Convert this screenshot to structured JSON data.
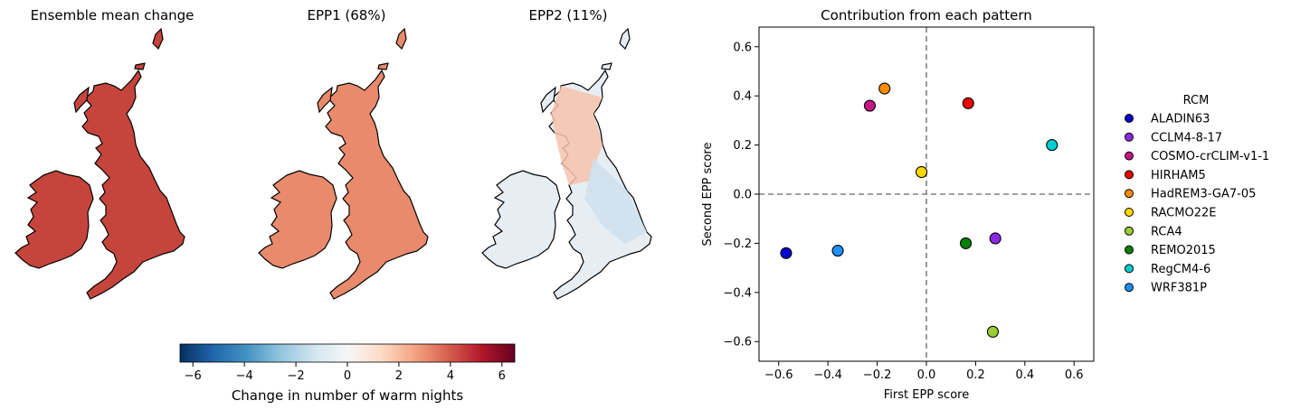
{
  "maps": {
    "panels": [
      {
        "title": "Ensemble mean change"
      },
      {
        "title": "EPP1 (68%)"
      },
      {
        "title": "EPP2 (11%)"
      }
    ],
    "colorbar": {
      "label": "Change in number of warm nights",
      "range": [
        -6.5,
        6.5
      ],
      "ticks": [
        -6,
        -4,
        -2,
        0,
        2,
        4,
        6
      ],
      "tick_labels": [
        "−6",
        "−4",
        "−2",
        "0",
        "2",
        "4",
        "6"
      ],
      "colormap": [
        "#053061",
        "#2166ac",
        "#4393c3",
        "#92c5de",
        "#d1e5f0",
        "#f7f7f7",
        "#fddbc7",
        "#f4a582",
        "#d6604d",
        "#b2182b",
        "#67001f"
      ]
    }
  },
  "chart_data": {
    "type": "scatter",
    "title": "Contribution from each pattern",
    "xlabel": "First EPP score",
    "ylabel": "Second EPP score",
    "xlim": [
      -0.68,
      0.68
    ],
    "ylim": [
      -0.68,
      0.68
    ],
    "xticks": [
      -0.6,
      -0.4,
      -0.2,
      0.0,
      0.2,
      0.4,
      0.6
    ],
    "xtick_labels": [
      "−0.6",
      "−0.4",
      "−0.2",
      "0.0",
      "0.2",
      "0.4",
      "0.6"
    ],
    "yticks": [
      -0.6,
      -0.4,
      -0.2,
      0.0,
      0.2,
      0.4,
      0.6
    ],
    "ytick_labels": [
      "−0.6",
      "−0.4",
      "−0.2",
      "0.0",
      "0.2",
      "0.4",
      "0.6"
    ],
    "reference_lines": {
      "x": 0,
      "y": 0,
      "style": "dashed",
      "color": "#808080"
    },
    "grid": false,
    "legend": {
      "title": "RCM",
      "placement": "outside-right"
    },
    "series": [
      {
        "name": "ALADIN63",
        "color": "#0000cd",
        "x": -0.57,
        "y": -0.24
      },
      {
        "name": "CCLM4-8-17",
        "color": "#8a2be2",
        "x": 0.28,
        "y": -0.18
      },
      {
        "name": "COSMO-crCLIM-v1-1",
        "color": "#c71585",
        "x": -0.23,
        "y": 0.36
      },
      {
        "name": "HIRHAM5",
        "color": "#ee0000",
        "x": 0.17,
        "y": 0.37
      },
      {
        "name": "HadREM3-GA7-05",
        "color": "#ff8c00",
        "x": -0.17,
        "y": 0.43
      },
      {
        "name": "RACMO22E",
        "color": "#ffd700",
        "x": -0.02,
        "y": 0.09
      },
      {
        "name": "RCA4",
        "color": "#9acd32",
        "x": 0.27,
        "y": -0.56
      },
      {
        "name": "REMO2015",
        "color": "#008000",
        "x": 0.16,
        "y": -0.2
      },
      {
        "name": "RegCM4-6",
        "color": "#00ced1",
        "x": 0.51,
        "y": 0.2
      },
      {
        "name": "WRF381P",
        "color": "#1e90ff",
        "x": -0.36,
        "y": -0.23
      }
    ]
  }
}
